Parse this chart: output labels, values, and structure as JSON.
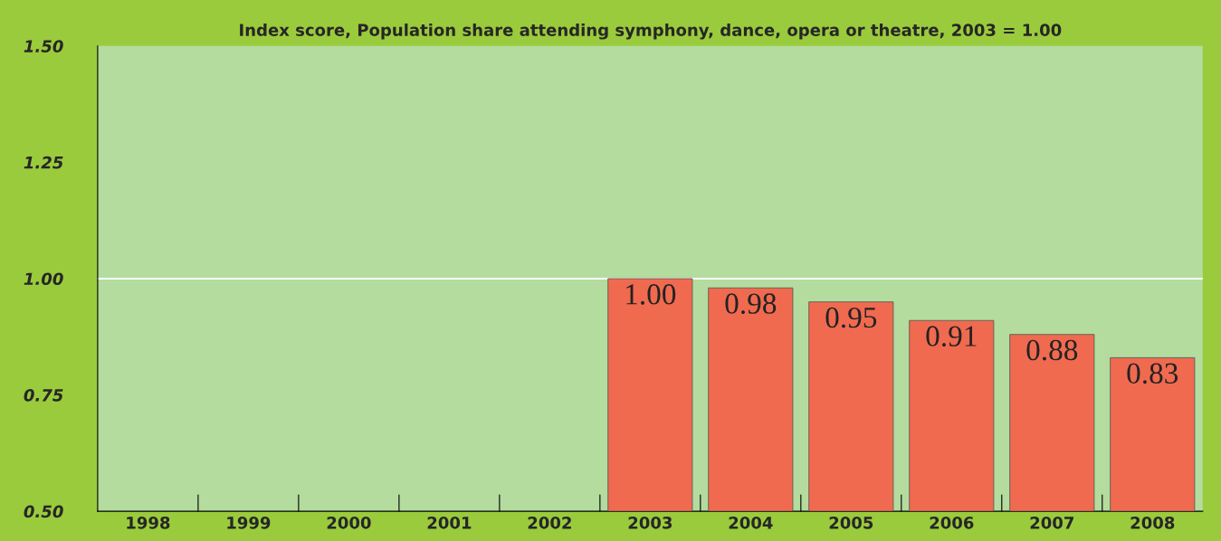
{
  "chart_data": {
    "type": "bar",
    "title": "Index score, Population share attending symphony, dance, opera or theatre, 2003 = 1.00",
    "categories": [
      "1998",
      "1999",
      "2000",
      "2001",
      "2002",
      "2003",
      "2004",
      "2005",
      "2006",
      "2007",
      "2008"
    ],
    "values": [
      null,
      null,
      null,
      null,
      null,
      1.0,
      0.98,
      0.95,
      0.91,
      0.88,
      0.83
    ],
    "color": "#f06a50",
    "value_labels": [
      null,
      null,
      null,
      null,
      null,
      "1.00",
      "0.98",
      "0.95",
      "0.91",
      "0.88",
      "0.83"
    ],
    "ylim": [
      0.5,
      1.5
    ],
    "yticks": [
      {
        "value": 0.5,
        "label": "0.50"
      },
      {
        "value": 0.75,
        "label": "0.75"
      },
      {
        "value": 1.0,
        "label": "1.00"
      },
      {
        "value": 1.25,
        "label": "1.25"
      },
      {
        "value": 1.5,
        "label": "1.50"
      }
    ],
    "ref_lines": [
      {
        "axis": "y",
        "value": 1.0,
        "color": "#ffffff"
      }
    ],
    "grid": false
  }
}
